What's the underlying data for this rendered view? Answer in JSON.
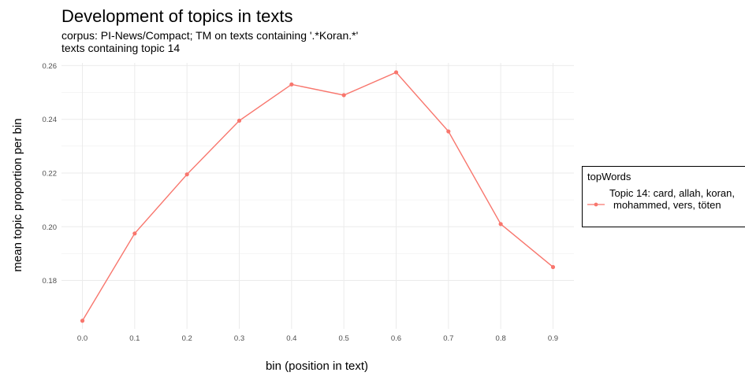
{
  "title": "Development of topics in texts",
  "subtitle_line1": "corpus: PI-News/Compact; TM on texts containing '.*Koran.*'",
  "subtitle_line2": "texts containing topic 14",
  "colors": {
    "series": "#f8766d",
    "grid": "#ebebeb"
  },
  "chart_data": {
    "type": "line",
    "xlabel": "bin (position in text)",
    "ylabel": "mean topic proportion per bin",
    "x": [
      0.0,
      0.1,
      0.2,
      0.3,
      0.4,
      0.5,
      0.6,
      0.7,
      0.8,
      0.9
    ],
    "x_tick_labels": [
      "0.0",
      "0.1",
      "0.2",
      "0.3",
      "0.4",
      "0.5",
      "0.6",
      "0.7",
      "0.8",
      "0.9"
    ],
    "y_ticks": [
      0.18,
      0.2,
      0.22,
      0.24,
      0.26
    ],
    "y_tick_labels": [
      "0.18",
      "0.20",
      "0.22",
      "0.24",
      "0.26"
    ],
    "ylim": [
      0.162,
      0.261
    ],
    "grid": true,
    "legend_position": "right",
    "series": [
      {
        "values": [
          0.165,
          0.1975,
          0.2195,
          0.2395,
          0.253,
          0.249,
          0.2575,
          0.2355,
          0.201,
          0.185
        ]
      }
    ],
    "legend": {
      "title": "topWords",
      "label_line1": "Topic 14: card, allah, koran,",
      "label_line2": "mohammed, vers, töten"
    }
  }
}
